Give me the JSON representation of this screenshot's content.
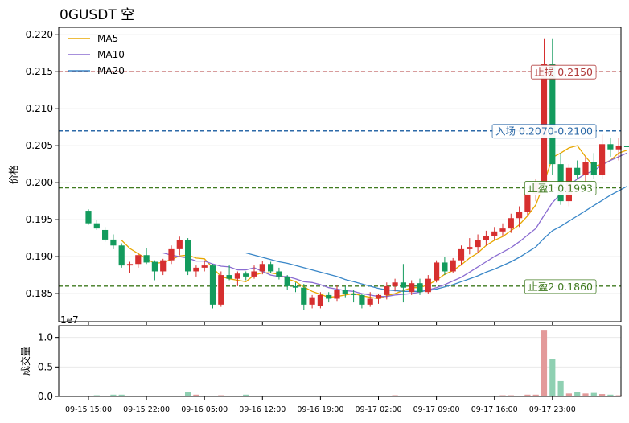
{
  "chart_data": {
    "type": "candlestick",
    "title": "0GUSDT  空",
    "price_panel": {
      "ylabel": "价格",
      "ylim": [
        0.1812,
        0.221
      ],
      "yticks": [
        0.185,
        0.19,
        0.195,
        0.2,
        0.205,
        0.21,
        0.215,
        0.22
      ],
      "ytick_labels": [
        "0.185",
        "0.190",
        "0.195",
        "0.200",
        "0.205",
        "0.210",
        "0.215",
        "0.220"
      ],
      "legend_position": "top-left",
      "legend": [
        {
          "name": "MA5",
          "color": "#e8a700"
        },
        {
          "name": "MA10",
          "color": "#8a6cd1"
        },
        {
          "name": "MA20",
          "color": "#3a87c8"
        }
      ],
      "up_color": "#d62f2f",
      "down_color": "#139b5d",
      "levels": [
        {
          "label": "止损 0.2150",
          "value": 0.215,
          "color": "#b03a3a"
        },
        {
          "label": "入场 0.2070-0.2100",
          "value": 0.207,
          "color": "#2d6aa8"
        },
        {
          "label": "止盈1 0.1993",
          "value": 0.1993,
          "color": "#3f7a1f"
        },
        {
          "label": "止盈2 0.1860",
          "value": 0.186,
          "color": "#3f7a1f"
        }
      ],
      "candles": [
        [
          0.1962,
          0.1964,
          0.1943,
          0.1945
        ],
        [
          0.1945,
          0.195,
          0.1936,
          0.1938
        ],
        [
          0.1936,
          0.194,
          0.192,
          0.1923
        ],
        [
          0.1923,
          0.193,
          0.191,
          0.1915
        ],
        [
          0.1915,
          0.1918,
          0.1885,
          0.1888
        ],
        [
          0.1888,
          0.1893,
          0.1878,
          0.189
        ],
        [
          0.189,
          0.1905,
          0.1885,
          0.1902
        ],
        [
          0.1902,
          0.1912,
          0.189,
          0.1892
        ],
        [
          0.1893,
          0.1895,
          0.1868,
          0.188
        ],
        [
          0.188,
          0.1897,
          0.1875,
          0.1895
        ],
        [
          0.1895,
          0.1915,
          0.189,
          0.191
        ],
        [
          0.191,
          0.1927,
          0.1902,
          0.1922
        ],
        [
          0.1922,
          0.1925,
          0.1875,
          0.188
        ],
        [
          0.188,
          0.1888,
          0.1873,
          0.1885
        ],
        [
          0.1885,
          0.1895,
          0.188,
          0.1888
        ],
        [
          0.1888,
          0.189,
          0.183,
          0.1835
        ],
        [
          0.1835,
          0.188,
          0.1832,
          0.1875
        ],
        [
          0.1875,
          0.1888,
          0.1868,
          0.187
        ],
        [
          0.187,
          0.188,
          0.186,
          0.1877
        ],
        [
          0.1877,
          0.188,
          0.1868,
          0.1873
        ],
        [
          0.1873,
          0.1888,
          0.187,
          0.188
        ],
        [
          0.188,
          0.1894,
          0.1876,
          0.189
        ],
        [
          0.189,
          0.1893,
          0.1878,
          0.188
        ],
        [
          0.188,
          0.1885,
          0.1869,
          0.1873
        ],
        [
          0.1873,
          0.1875,
          0.1855,
          0.186
        ],
        [
          0.186,
          0.1865,
          0.1852,
          0.1858
        ],
        [
          0.1858,
          0.1863,
          0.1828,
          0.1835
        ],
        [
          0.1835,
          0.1848,
          0.183,
          0.1845
        ],
        [
          0.1833,
          0.1852,
          0.183,
          0.1848
        ],
        [
          0.1848,
          0.1852,
          0.1838,
          0.1843
        ],
        [
          0.1843,
          0.1862,
          0.184,
          0.1855
        ],
        [
          0.1855,
          0.186,
          0.1845,
          0.185
        ],
        [
          0.185,
          0.1855,
          0.1838,
          0.1848
        ],
        [
          0.1848,
          0.185,
          0.183,
          0.1835
        ],
        [
          0.1835,
          0.1852,
          0.1832,
          0.1843
        ],
        [
          0.1843,
          0.185,
          0.1836,
          0.1848
        ],
        [
          0.1848,
          0.1865,
          0.1842,
          0.186
        ],
        [
          0.186,
          0.187,
          0.1853,
          0.1865
        ],
        [
          0.1865,
          0.189,
          0.1838,
          0.1858
        ],
        [
          0.1852,
          0.1868,
          0.1848,
          0.1864
        ],
        [
          0.1864,
          0.187,
          0.1848,
          0.1852
        ],
        [
          0.1852,
          0.1875,
          0.185,
          0.187
        ],
        [
          0.1868,
          0.1895,
          0.1865,
          0.1892
        ],
        [
          0.1892,
          0.19,
          0.1875,
          0.188
        ],
        [
          0.188,
          0.1898,
          0.1878,
          0.1895
        ],
        [
          0.1895,
          0.1915,
          0.1888,
          0.191
        ],
        [
          0.191,
          0.1925,
          0.1903,
          0.1913
        ],
        [
          0.1913,
          0.193,
          0.1905,
          0.1922
        ],
        [
          0.1922,
          0.1935,
          0.1915,
          0.1928
        ],
        [
          0.1928,
          0.194,
          0.1922,
          0.1934
        ],
        [
          0.1934,
          0.1945,
          0.1928,
          0.1938
        ],
        [
          0.1938,
          0.1958,
          0.1932,
          0.1952
        ],
        [
          0.1952,
          0.1968,
          0.194,
          0.196
        ],
        [
          0.196,
          0.199,
          0.1955,
          0.1985
        ],
        [
          0.1985,
          0.2005,
          0.1975,
          0.2
        ],
        [
          0.2,
          0.2195,
          0.1995,
          0.216
        ],
        [
          0.216,
          0.2195,
          0.201,
          0.2025
        ],
        [
          0.2025,
          0.204,
          0.197,
          0.1975
        ],
        [
          0.1975,
          0.2025,
          0.1968,
          0.202
        ],
        [
          0.202,
          0.203,
          0.2005,
          0.201
        ],
        [
          0.201,
          0.2035,
          0.2,
          0.2028
        ],
        [
          0.2028,
          0.204,
          0.2005,
          0.201
        ],
        [
          0.201,
          0.2065,
          0.2005,
          0.2052
        ],
        [
          0.2052,
          0.206,
          0.2035,
          0.2045
        ],
        [
          0.2045,
          0.206,
          0.203,
          0.205
        ],
        [
          0.205,
          0.2055,
          0.2035,
          0.2048
        ]
      ],
      "ma5": [
        null,
        null,
        null,
        null,
        0.1922,
        0.1911,
        0.1904,
        0.1897,
        0.1891,
        0.1892,
        0.1896,
        0.1901,
        0.1902,
        0.1898,
        0.1897,
        0.1885,
        0.1873,
        0.187,
        0.1868,
        0.1866,
        0.1875,
        0.1878,
        0.1878,
        0.1876,
        0.187,
        0.1866,
        0.1859,
        0.1853,
        0.1849,
        0.1845,
        0.1846,
        0.1848,
        0.185,
        0.1847,
        0.1845,
        0.1843,
        0.1847,
        0.185,
        0.1854,
        0.1858,
        0.1858,
        0.1862,
        0.1868,
        0.1876,
        0.1881,
        0.1889,
        0.1898,
        0.1905,
        0.1915,
        0.1922,
        0.1927,
        0.1935,
        0.1943,
        0.1955,
        0.197,
        0.2,
        0.2034,
        0.204,
        0.2047,
        0.205,
        0.2035,
        0.2022,
        0.2025,
        0.203,
        0.204,
        0.2044
      ],
      "ma10": [
        null,
        null,
        null,
        null,
        null,
        null,
        null,
        null,
        null,
        0.1905,
        0.1902,
        0.19,
        0.1898,
        0.1894,
        0.1894,
        0.189,
        0.1887,
        0.1886,
        0.1882,
        0.1882,
        0.1885,
        0.188,
        0.1875,
        0.1873,
        0.1873,
        0.187,
        0.1866,
        0.1865,
        0.1862,
        0.1858,
        0.1856,
        0.1854,
        0.1853,
        0.185,
        0.1848,
        0.1846,
        0.1846,
        0.1848,
        0.1849,
        0.185,
        0.1852,
        0.1855,
        0.1858,
        0.1862,
        0.1867,
        0.1872,
        0.1879,
        0.1886,
        0.1893,
        0.19,
        0.1906,
        0.1912,
        0.192,
        0.1929,
        0.1938,
        0.1956,
        0.1973,
        0.1985,
        0.1996,
        0.2005,
        0.2012,
        0.2016,
        0.2024,
        0.203,
        0.2035,
        0.204
      ],
      "ma20": [
        null,
        null,
        null,
        null,
        null,
        null,
        null,
        null,
        null,
        null,
        null,
        null,
        null,
        null,
        null,
        null,
        null,
        null,
        null,
        0.1905,
        0.1902,
        0.1899,
        0.1896,
        0.1893,
        0.1891,
        0.1888,
        0.1885,
        0.1882,
        0.1879,
        0.1876,
        0.1873,
        0.1869,
        0.1866,
        0.1863,
        0.186,
        0.1857,
        0.1855,
        0.1854,
        0.1853,
        0.1853,
        0.1853,
        0.1854,
        0.1856,
        0.1859,
        0.1862,
        0.1866,
        0.187,
        0.1874,
        0.1879,
        0.1883,
        0.1888,
        0.1893,
        0.1899,
        0.1906,
        0.1913,
        0.1925,
        0.1935,
        0.1941,
        0.1948,
        0.1955,
        0.1962,
        0.1969,
        0.1976,
        0.1983,
        0.1989,
        0.1995
      ]
    },
    "volume_panel": {
      "ylabel": "成交量",
      "offset_label": "1e7",
      "ylim": [
        0,
        1.2
      ],
      "yticks": [
        0,
        0.5,
        1.0
      ],
      "ytick_labels": [
        "0.0",
        "0.5",
        "1.0"
      ],
      "values": [
        0.01,
        0.02,
        0.01,
        0.03,
        0.03,
        0.01,
        0.01,
        0.01,
        0.01,
        0.01,
        0.01,
        0.01,
        0.07,
        0.03,
        0.01,
        0.01,
        0.02,
        0.01,
        0.01,
        0.03,
        0.01,
        0.01,
        0.01,
        0.01,
        0.01,
        0.01,
        0.01,
        0.01,
        0.01,
        0.01,
        0.01,
        0.01,
        0.01,
        0.01,
        0.01,
        0.01,
        0.01,
        0.02,
        0.01,
        0.01,
        0.01,
        0.01,
        0.01,
        0.01,
        0.01,
        0.01,
        0.01,
        0.01,
        0.01,
        0.01,
        0.02,
        0.02,
        0.01,
        0.03,
        0.03,
        1.13,
        0.64,
        0.26,
        0.05,
        0.07,
        0.05,
        0.06,
        0.04,
        0.03,
        0.02,
        0.01
      ]
    },
    "x_tick_labels": [
      "09-15 15:00",
      "09-15 22:00",
      "09-16 05:00",
      "09-16 12:00",
      "09-16 19:00",
      "09-17 02:00",
      "09-17 09:00",
      "09-17 16:00",
      "09-17 23:00"
    ],
    "x_tick_indices": [
      0,
      7,
      14,
      21,
      28,
      35,
      42,
      49,
      56
    ]
  }
}
